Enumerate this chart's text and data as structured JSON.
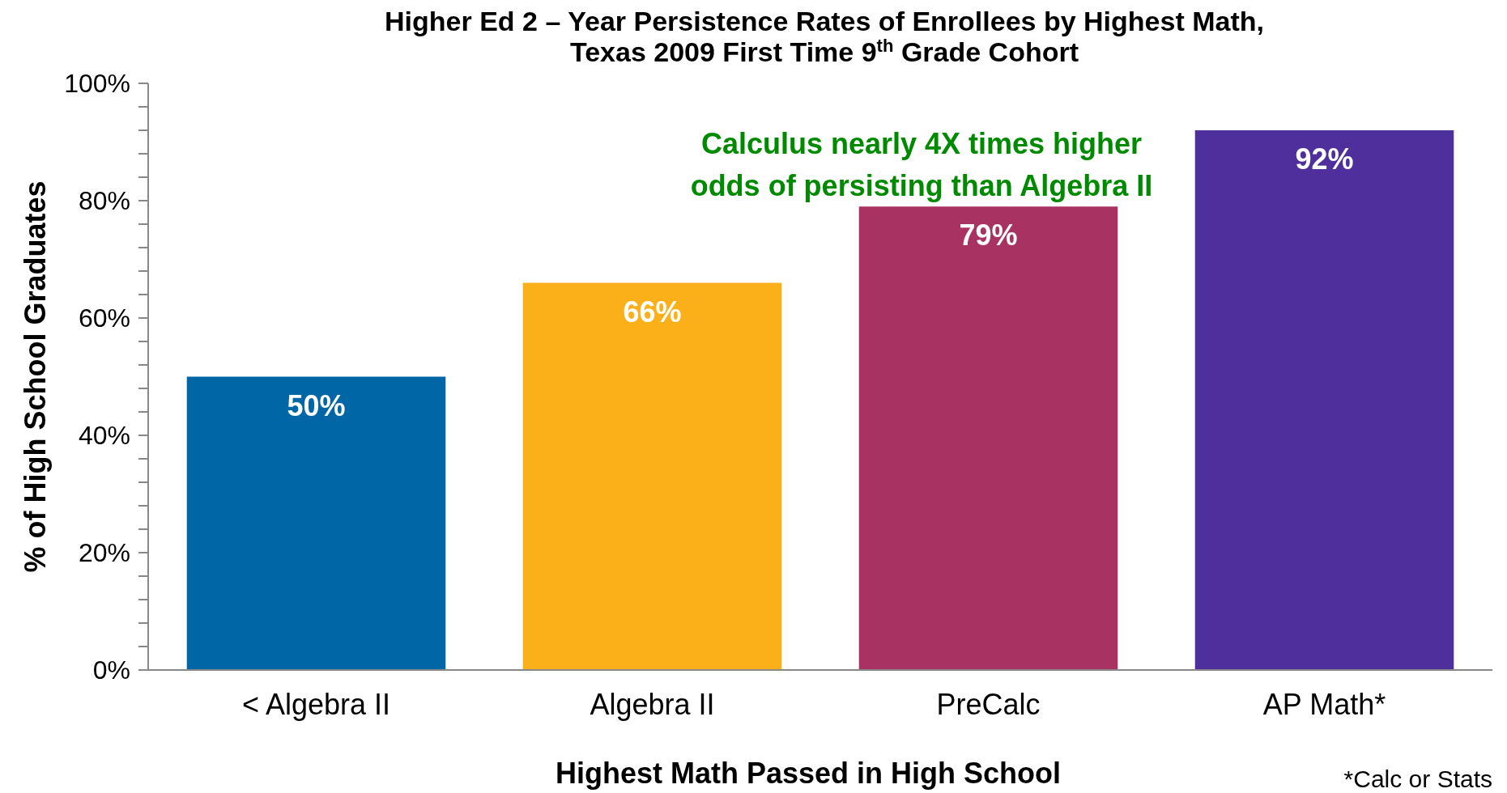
{
  "chart_data": {
    "type": "bar",
    "title": "Higher Ed 2 – Year Persistence Rates of Enrollees by Highest Math,\nTexas 2009 First Time 9$^{th}$ Grade Cohort",
    "xlabel": "Highest Math Passed in High School",
    "ylabel": "% of High School Graduates",
    "categories": [
      "< Algebra II",
      "Algebra II",
      "PreCalc",
      "AP Math*"
    ],
    "values": [
      50,
      66,
      79,
      92
    ],
    "colors": [
      "#0066a6",
      "#fbb01a",
      "#a83262",
      "#4e2f9b"
    ],
    "value_labels": [
      "50%",
      "66%",
      "79%",
      "92%"
    ],
    "ylim": [
      0,
      100
    ],
    "yticks": [
      {
        "value": 0,
        "label": "0%"
      },
      {
        "value": 4,
        "label": null
      },
      {
        "value": 8,
        "label": null
      },
      {
        "value": 12,
        "label": null
      },
      {
        "value": 16,
        "label": null
      },
      {
        "value": 20,
        "label": "20%"
      },
      {
        "value": 24,
        "label": null
      },
      {
        "value": 28,
        "label": null
      },
      {
        "value": 32,
        "label": null
      },
      {
        "value": 36,
        "label": null
      },
      {
        "value": 40,
        "label": "40%"
      },
      {
        "value": 44,
        "label": null
      },
      {
        "value": 48,
        "label": null
      },
      {
        "value": 52,
        "label": null
      },
      {
        "value": 56,
        "label": null
      },
      {
        "value": 60,
        "label": "60%"
      },
      {
        "value": 64,
        "label": null
      },
      {
        "value": 68,
        "label": null
      },
      {
        "value": 72,
        "label": null
      },
      {
        "value": 76,
        "label": null
      },
      {
        "value": 80,
        "label": "80%"
      },
      {
        "value": 84,
        "label": null
      },
      {
        "value": 88,
        "label": null
      },
      {
        "value": 92,
        "label": null
      },
      {
        "value": 96,
        "label": null
      },
      {
        "value": 100,
        "label": "100%"
      }
    ],
    "annotations": [
      "Calculus nearly 4X times higher\nodds of persisting than Algebra II",
      "*Calc or Stats"
    ]
  }
}
